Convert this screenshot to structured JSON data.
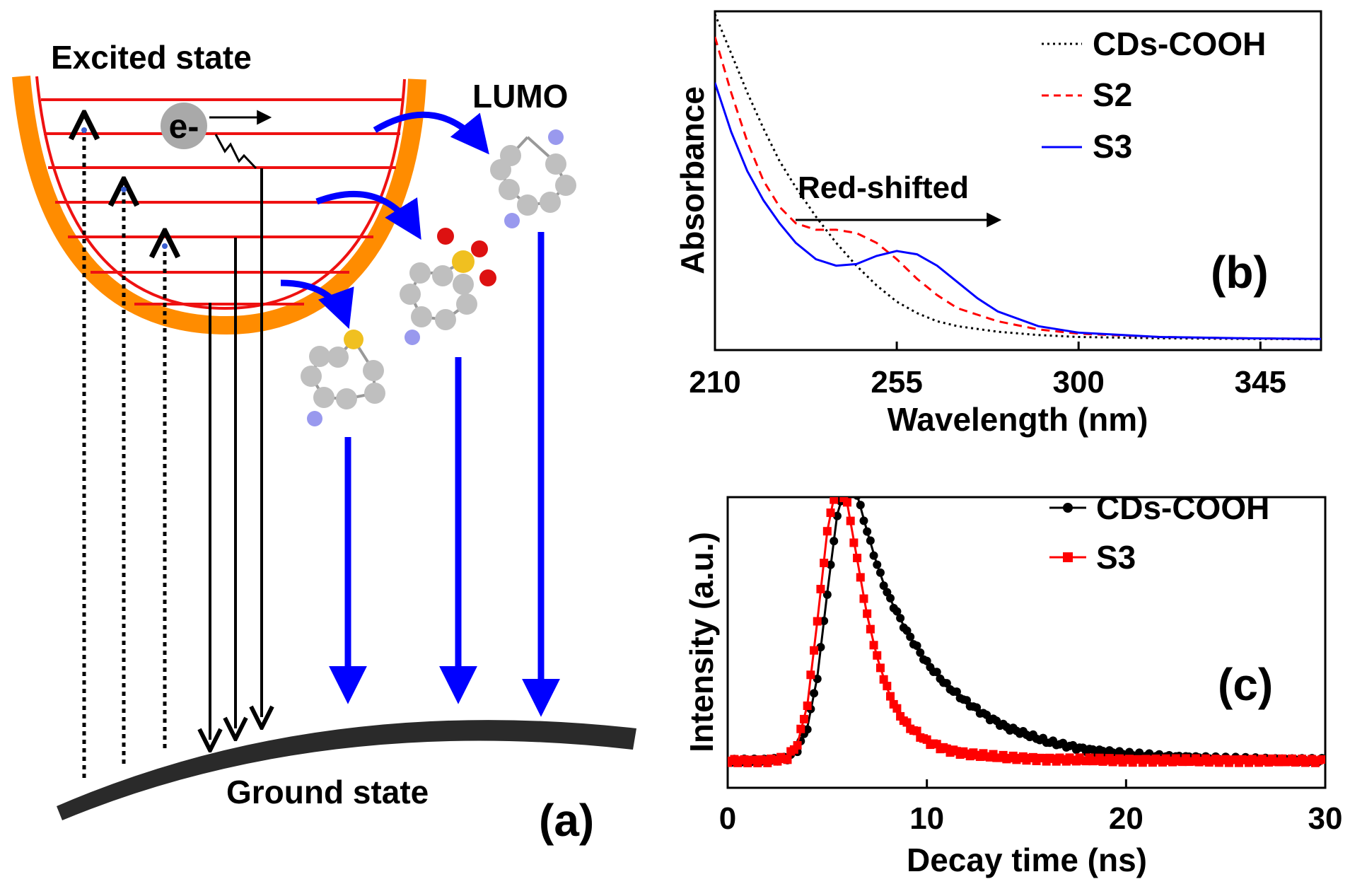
{
  "colors": {
    "black": "#000000",
    "red": "#ff0000",
    "blue": "#0000ff",
    "orange": "#ff8c00",
    "well_red": "#ee1111",
    "atom_gray": "#bfbfbf",
    "atom_n": "#9999ee",
    "atom_s": "#f0c020",
    "atom_o": "#dd1111",
    "ground": "#2a2a2a"
  },
  "panel_a": {
    "excited_state": "Excited state",
    "lumo": "LUMO",
    "electron": "e-",
    "ground_state": "Ground state",
    "tag": "(a)"
  },
  "panel_b": {
    "tag": "(b)",
    "annotation": "Red-shifted"
  },
  "panel_c": {
    "tag": "(c)"
  },
  "chart_data": [
    {
      "type": "line",
      "panel": "b",
      "title": "",
      "xlabel": "Wavelength (nm)",
      "ylabel": "Absorbance",
      "xlim": [
        210,
        360
      ],
      "ylim": [
        0,
        1.0
      ],
      "xticks": [
        210,
        255,
        300,
        345
      ],
      "tick_labels": [
        "210",
        "255",
        "300",
        "345"
      ],
      "legend": "top-right",
      "series": [
        {
          "name": "CDs-COOH",
          "style": "dotted",
          "color": "#000000",
          "x": [
            210,
            214,
            218,
            222,
            226,
            230,
            235,
            240,
            245,
            250,
            255,
            260,
            265,
            270,
            280,
            290,
            300,
            320,
            340,
            360
          ],
          "y": [
            1.0,
            0.88,
            0.76,
            0.65,
            0.55,
            0.47,
            0.38,
            0.3,
            0.23,
            0.17,
            0.12,
            0.085,
            0.06,
            0.045,
            0.028,
            0.018,
            0.012,
            0.008,
            0.006,
            0.005
          ]
        },
        {
          "name": "S2",
          "style": "dashed",
          "color": "#ff0000",
          "x": [
            210,
            214,
            218,
            222,
            226,
            230,
            235,
            240,
            245,
            250,
            255,
            260,
            265,
            270,
            280,
            290,
            300,
            320,
            340,
            360
          ],
          "y": [
            0.93,
            0.76,
            0.61,
            0.49,
            0.41,
            0.36,
            0.34,
            0.34,
            0.33,
            0.3,
            0.25,
            0.19,
            0.14,
            0.1,
            0.06,
            0.035,
            0.022,
            0.012,
            0.008,
            0.006
          ]
        },
        {
          "name": "S3",
          "style": "solid",
          "color": "#0000ff",
          "x": [
            210,
            214,
            218,
            222,
            226,
            230,
            235,
            240,
            245,
            250,
            255,
            260,
            265,
            270,
            275,
            280,
            290,
            300,
            320,
            340,
            360
          ],
          "y": [
            0.79,
            0.64,
            0.52,
            0.43,
            0.36,
            0.3,
            0.25,
            0.23,
            0.235,
            0.26,
            0.275,
            0.265,
            0.23,
            0.18,
            0.13,
            0.09,
            0.045,
            0.025,
            0.012,
            0.008,
            0.006
          ]
        }
      ]
    },
    {
      "type": "line",
      "panel": "c",
      "title": "",
      "xlabel": "Decay time (ns)",
      "ylabel": "Intensity (a.u.)",
      "xlim": [
        0,
        30
      ],
      "ylim": [
        0,
        1.0
      ],
      "xticks": [
        0,
        10,
        20,
        30
      ],
      "tick_labels": [
        "0",
        "10",
        "20",
        "30"
      ],
      "legend": "top-right",
      "series": [
        {
          "name": "CDs-COOH",
          "marker": "circle",
          "color": "#000000",
          "x": [
            0,
            2,
            3,
            3.5,
            4,
            4.5,
            5,
            5.5,
            6,
            6.5,
            7,
            7.5,
            8,
            9,
            10,
            11,
            12,
            13,
            14,
            16,
            18,
            20,
            22,
            25,
            30
          ],
          "y": [
            0,
            0,
            0.01,
            0.04,
            0.12,
            0.3,
            0.6,
            0.88,
            1.0,
            0.95,
            0.82,
            0.7,
            0.6,
            0.46,
            0.35,
            0.27,
            0.21,
            0.16,
            0.12,
            0.07,
            0.04,
            0.025,
            0.015,
            0.007,
            0.002
          ]
        },
        {
          "name": "S3",
          "marker": "square",
          "color": "#ff0000",
          "x": [
            0,
            2,
            3,
            3.5,
            4,
            4.5,
            5,
            5.5,
            6,
            6.5,
            7,
            7.5,
            8,
            8.5,
            9,
            10,
            11,
            12,
            14,
            16,
            20,
            30
          ],
          "y": [
            0,
            0,
            0.01,
            0.06,
            0.2,
            0.5,
            0.82,
            1.0,
            0.92,
            0.72,
            0.52,
            0.37,
            0.26,
            0.18,
            0.13,
            0.07,
            0.04,
            0.025,
            0.012,
            0.006,
            0.002,
            0.0
          ]
        }
      ]
    }
  ]
}
